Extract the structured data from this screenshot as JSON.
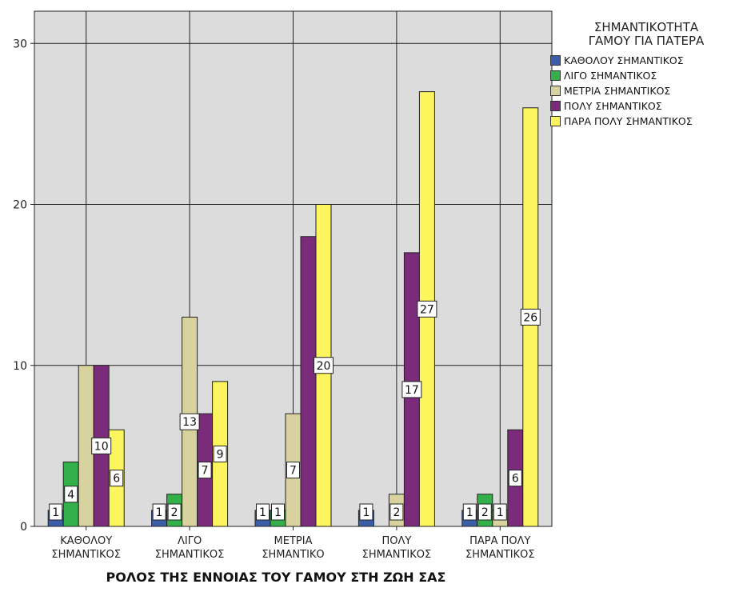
{
  "chart_data": {
    "type": "bar",
    "title": "",
    "xlabel": "ΡΟΛΟΣ ΤΗΣ ΕΝΝΟΙΑΣ ΤΟΥ ΓΑΜΟΥ ΣΤΗ ΖΩΗ ΣΑΣ",
    "ylabel": "",
    "ylim": [
      0,
      32
    ],
    "yticks": [
      0,
      10,
      20,
      30
    ],
    "grid": true,
    "legend_position": "right",
    "categories": [
      [
        "ΚΑΘΟΛΟΥ",
        "ΣΗΜΑΝΤΙΚΟΣ"
      ],
      [
        "ΛΙΓΟ",
        "ΣΗΜΑΝΤΙΚΟΣ"
      ],
      [
        "ΜΕΤΡΙΑ",
        "ΣΗΜΑΝΤΙΚΟ"
      ],
      [
        "ΠΟΛΥ",
        "ΣΗΜΑΝΤΙΚΟΣ"
      ],
      [
        "ΠΑΡΑ ΠΟΛΥ",
        "ΣΗΜΑΝΤΙΚΟΣ"
      ]
    ],
    "legend_title": [
      "ΣΗΜΑΝΤΙΚΟΤΗΤΑ",
      "ΓΑΜΟΥ ΓΙΑ ΠΑΤΕΡΑ"
    ],
    "series": [
      {
        "name": "ΚΑΘΟΛΟΥ ΣΗΜΑΝΤΙΚΟΣ",
        "color": "#3a5fa8",
        "values": [
          1,
          1,
          1,
          1,
          1
        ]
      },
      {
        "name": "ΛΙΓΟ ΣΗΜΑΝΤΙΚΟΣ",
        "color": "#34b04a",
        "values": [
          4,
          2,
          1,
          null,
          2
        ]
      },
      {
        "name": "ΜΕΤΡΙΑ ΣΗΜΑΝΤΙΚΟΣ",
        "color": "#d8d29e",
        "values": [
          10,
          13,
          7,
          2,
          1
        ]
      },
      {
        "name": "ΠΟΛΥ ΣΗΜΑΝΤΙΚΟΣ",
        "color": "#7a2c7a",
        "values": [
          10,
          7,
          18,
          17,
          6
        ]
      },
      {
        "name": "ΠΑΡΑ ΠΟΛΥ ΣΗΜΑΝΤΙΚΟΣ",
        "color": "#fcf55e",
        "values": [
          6,
          9,
          20,
          27,
          26
        ]
      }
    ],
    "data_labels": [
      [
        "1",
        "4",
        "",
        "10",
        "6"
      ],
      [
        "1",
        "2",
        "13",
        "7",
        "9"
      ],
      [
        "1",
        "1",
        "7",
        "",
        "20"
      ],
      [
        "1",
        "",
        "2",
        "17",
        "27"
      ],
      [
        "1",
        "2",
        "1",
        "6",
        "26"
      ]
    ],
    "plot_background": "#dcdcdc"
  }
}
